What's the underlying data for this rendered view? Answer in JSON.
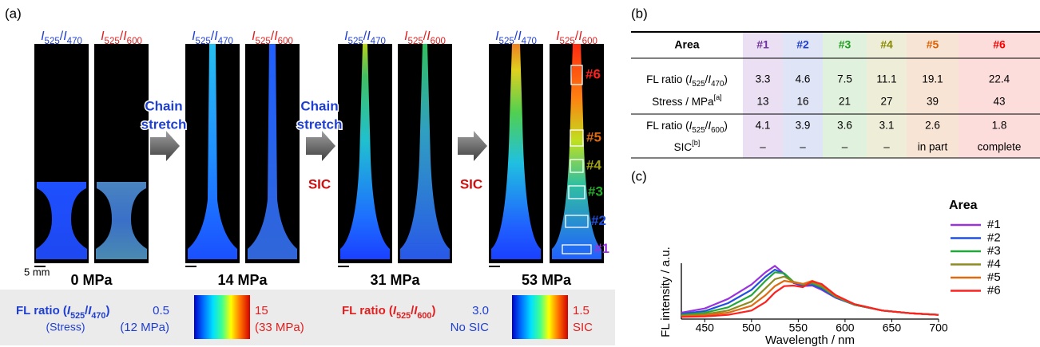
{
  "panel_a": {
    "label": "(a)",
    "stages": [
      {
        "ratio_470": [
          {
            "text": "I",
            "style": "italic"
          },
          {
            "text": "525",
            "style": "sub"
          },
          {
            "text": "/",
            "style": "normal"
          },
          {
            "text": "I",
            "style": "italic"
          },
          {
            "text": "470",
            "style": "sub"
          }
        ],
        "ratio_600": [
          {
            "text": "I",
            "style": "italic"
          },
          {
            "text": "525",
            "style": "sub"
          },
          {
            "text": "/",
            "style": "normal"
          },
          {
            "text": "I",
            "style": "italic"
          },
          {
            "text": "600",
            "style": "sub"
          }
        ],
        "stress": "0 MPa"
      },
      {
        "ratio_470": [
          {
            "text": "I",
            "style": "italic"
          },
          {
            "text": "525",
            "style": "sub"
          },
          {
            "text": "/",
            "style": "normal"
          },
          {
            "text": "I",
            "style": "italic"
          },
          {
            "text": "470",
            "style": "sub"
          }
        ],
        "ratio_600": [
          {
            "text": "I",
            "style": "italic"
          },
          {
            "text": "525",
            "style": "sub"
          },
          {
            "text": "/",
            "style": "normal"
          },
          {
            "text": "I",
            "style": "italic"
          },
          {
            "text": "600",
            "style": "sub"
          }
        ],
        "stress": "14 MPa"
      },
      {
        "ratio_470": [
          {
            "text": "I",
            "style": "italic"
          },
          {
            "text": "525",
            "style": "sub"
          },
          {
            "text": "/",
            "style": "normal"
          },
          {
            "text": "I",
            "style": "italic"
          },
          {
            "text": "470",
            "style": "sub"
          }
        ],
        "ratio_600": [
          {
            "text": "I",
            "style": "italic"
          },
          {
            "text": "525",
            "style": "sub"
          },
          {
            "text": "/",
            "style": "normal"
          },
          {
            "text": "I",
            "style": "italic"
          },
          {
            "text": "600",
            "style": "sub"
          }
        ],
        "stress": "31 MPa"
      },
      {
        "ratio_470": [
          {
            "text": "I",
            "style": "italic"
          },
          {
            "text": "525",
            "style": "sub"
          },
          {
            "text": "/",
            "style": "normal"
          },
          {
            "text": "I",
            "style": "italic"
          },
          {
            "text": "470",
            "style": "sub"
          }
        ],
        "ratio_600": [
          {
            "text": "I",
            "style": "italic"
          },
          {
            "text": "525",
            "style": "sub"
          },
          {
            "text": "/",
            "style": "normal"
          },
          {
            "text": "I",
            "style": "italic"
          },
          {
            "text": "600",
            "style": "sub"
          }
        ],
        "stress": "53 MPa"
      }
    ],
    "arrows": [
      {
        "stretch": [
          "Chain",
          "stretch"
        ]
      },
      {
        "stretch": [
          "Chain",
          "stretch"
        ],
        "sic": "SIC"
      },
      {
        "sic": "SIC"
      }
    ],
    "scale_bar": "5 mm",
    "regions": [
      {
        "label": "#6",
        "color": "#ff2020"
      },
      {
        "label": "#5",
        "color": "#e06a10"
      },
      {
        "label": "#4",
        "color": "#a0a010"
      },
      {
        "label": "#3",
        "color": "#22b02a"
      },
      {
        "label": "#2",
        "color": "#2050e0"
      },
      {
        "label": "#1",
        "color": "#9933dd"
      }
    ],
    "colorbars": [
      {
        "title": [
          {
            "text": "FL ratio (",
            "style": "normal"
          },
          {
            "text": "I",
            "style": "italic"
          },
          {
            "text": "525",
            "style": "sub"
          },
          {
            "text": "/",
            "style": "normal"
          },
          {
            "text": "I",
            "style": "italic"
          },
          {
            "text": "470",
            "style": "sub"
          },
          {
            "text": ")",
            "style": "normal"
          }
        ],
        "title_color": "#1f3fd0",
        "subtitle": "(Stress)",
        "low": {
          "value": "0.5",
          "note": "(12 MPa)",
          "color": "#1f3fd0"
        },
        "high": {
          "value": "15",
          "note": "(33 MPa)",
          "color": "#e02020"
        }
      },
      {
        "title": [
          {
            "text": "FL ratio (",
            "style": "normal"
          },
          {
            "text": "I",
            "style": "italic"
          },
          {
            "text": "525",
            "style": "sub"
          },
          {
            "text": "/",
            "style": "normal"
          },
          {
            "text": "I",
            "style": "italic"
          },
          {
            "text": "600",
            "style": "sub"
          },
          {
            "text": ")",
            "style": "normal"
          }
        ],
        "title_color": "#e02020",
        "low": {
          "value": "3.0",
          "note": "No SIC",
          "color": "#1f3fd0"
        },
        "high": {
          "value": "1.5",
          "note": "SIC",
          "color": "#e02020"
        }
      }
    ]
  },
  "panel_b": {
    "label": "(b)",
    "header": "Area",
    "columns": [
      {
        "name": "#1",
        "color": "#7030a0",
        "background": "#ebe0f3"
      },
      {
        "name": "#2",
        "color": "#1f3fd0",
        "background": "#dfe4f6"
      },
      {
        "name": "#3",
        "color": "#1f9e1f",
        "background": "#e0f1dd"
      },
      {
        "name": "#4",
        "color": "#8a8a00",
        "background": "#eeedd8"
      },
      {
        "name": "#5",
        "color": "#e06000",
        "background": "#f8e4d4"
      },
      {
        "name": "#6",
        "color": "#ff0000",
        "background": "#fddcdc"
      }
    ],
    "rows": [
      {
        "label": [
          {
            "text": "FL ratio (",
            "style": "normal"
          },
          {
            "text": "I",
            "style": "italic"
          },
          {
            "text": "525",
            "style": "sub"
          },
          {
            "text": "/",
            "style": "normal"
          },
          {
            "text": "I",
            "style": "italic"
          },
          {
            "text": "470",
            "style": "sub"
          },
          {
            "text": ")",
            "style": "normal"
          }
        ],
        "values": [
          3.3,
          4.6,
          7.5,
          11.1,
          19.1,
          22.4
        ]
      },
      {
        "label": [
          {
            "text": "Stress / MPa",
            "style": "normal"
          },
          {
            "text": "[a]",
            "style": "sup"
          }
        ],
        "values": [
          13,
          16,
          21,
          27,
          39,
          43
        ]
      },
      {
        "label": [
          {
            "text": "FL ratio (",
            "style": "normal"
          },
          {
            "text": "I",
            "style": "italic"
          },
          {
            "text": "525",
            "style": "sub"
          },
          {
            "text": "/",
            "style": "normal"
          },
          {
            "text": "I",
            "style": "italic"
          },
          {
            "text": "600",
            "style": "sub"
          },
          {
            "text": ")",
            "style": "normal"
          }
        ],
        "values": [
          4.1,
          3.9,
          3.6,
          3.1,
          2.6,
          1.8
        ]
      },
      {
        "label": [
          {
            "text": "SIC",
            "style": "normal"
          },
          {
            "text": "[b]",
            "style": "sup"
          }
        ],
        "values": [
          "–",
          "–",
          "–",
          "–",
          "in part",
          "complete"
        ]
      }
    ]
  },
  "chart_data": {
    "type": "line",
    "label": "(c)",
    "x_label": "Wavelength / nm",
    "y_label": "FL intensity / a.u.",
    "legend_title": "Area",
    "x": [
      425,
      450,
      475,
      500,
      515,
      525,
      535,
      545,
      555,
      565,
      575,
      590,
      610,
      640,
      670,
      700
    ],
    "series": [
      {
        "name": "#1",
        "color": "#9933dd",
        "values": [
          0.12,
          0.2,
          0.38,
          0.65,
          0.88,
          1.0,
          0.85,
          0.68,
          0.62,
          0.63,
          0.55,
          0.4,
          0.27,
          0.16,
          0.11,
          0.08
        ]
      },
      {
        "name": "#2",
        "color": "#2050e0",
        "values": [
          0.1,
          0.15,
          0.3,
          0.55,
          0.8,
          0.93,
          0.85,
          0.68,
          0.63,
          0.65,
          0.57,
          0.41,
          0.27,
          0.16,
          0.11,
          0.08
        ]
      },
      {
        "name": "#3",
        "color": "#22a83a",
        "values": [
          0.08,
          0.12,
          0.22,
          0.45,
          0.72,
          0.88,
          0.86,
          0.7,
          0.65,
          0.67,
          0.6,
          0.42,
          0.27,
          0.16,
          0.11,
          0.08
        ]
      },
      {
        "name": "#4",
        "color": "#8c8c20",
        "values": [
          0.06,
          0.09,
          0.16,
          0.33,
          0.58,
          0.75,
          0.8,
          0.7,
          0.66,
          0.69,
          0.62,
          0.43,
          0.28,
          0.16,
          0.11,
          0.08
        ]
      },
      {
        "name": "#5",
        "color": "#e06a10",
        "values": [
          0.05,
          0.07,
          0.12,
          0.25,
          0.45,
          0.62,
          0.72,
          0.69,
          0.66,
          0.72,
          0.65,
          0.44,
          0.28,
          0.16,
          0.11,
          0.08
        ]
      },
      {
        "name": "#6",
        "color": "#ff2020",
        "values": [
          0.04,
          0.05,
          0.08,
          0.16,
          0.32,
          0.5,
          0.62,
          0.63,
          0.6,
          0.71,
          0.66,
          0.45,
          0.28,
          0.16,
          0.11,
          0.08
        ]
      }
    ],
    "xlim": [
      425,
      700
    ],
    "xticks": [
      450,
      500,
      550,
      600,
      650,
      700
    ],
    "ylim": [
      0,
      1.05
    ]
  }
}
